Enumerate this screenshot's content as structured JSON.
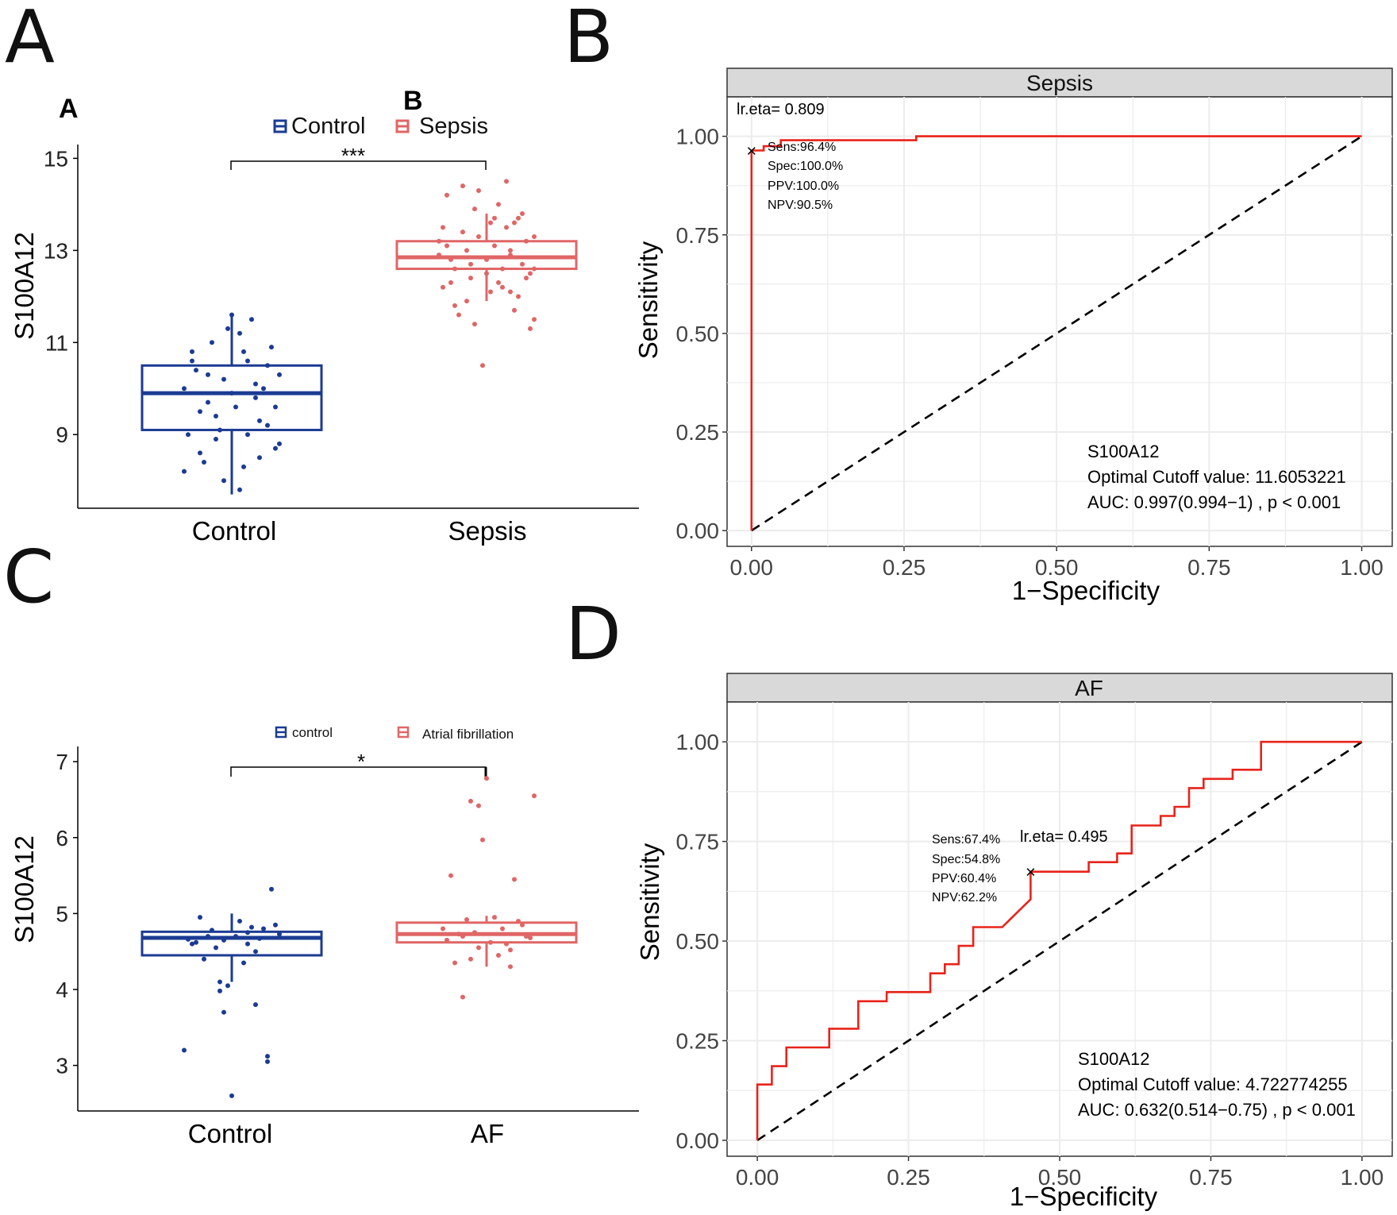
{
  "panels": {
    "A": {
      "letter": "A"
    },
    "B": {
      "letter": "B"
    },
    "C": {
      "letter": "C"
    },
    "D": {
      "letter": "D"
    }
  },
  "chart_data": [
    {
      "id": "A",
      "type": "box",
      "sublabels": [
        "A",
        "B"
      ],
      "legend": [
        "Control",
        "Sepsis"
      ],
      "ylabel": "S100A12",
      "categories": [
        "Control",
        "Sepsis"
      ],
      "yticks": [
        9,
        11,
        13,
        15
      ],
      "ylim": [
        7.4,
        15.3
      ],
      "significance": "***",
      "colors": [
        "#1b3b93",
        "#e06666"
      ],
      "boxes": [
        {
          "q1": 9.1,
          "median": 9.9,
          "q3": 10.5,
          "low": 7.7,
          "high": 11.6
        },
        {
          "q1": 12.6,
          "median": 12.85,
          "q3": 13.2,
          "low": 11.9,
          "high": 13.8
        }
      ],
      "points": [
        [
          [
            0,
            9.9
          ],
          [
            0.3,
            10.1
          ],
          [
            -0.4,
            9.5
          ],
          [
            0.6,
            10.3
          ],
          [
            -0.2,
            8.9
          ],
          [
            0.1,
            11.2
          ],
          [
            -0.5,
            10.8
          ],
          [
            0.45,
            9.2
          ],
          [
            -0.3,
            9.7
          ],
          [
            0.2,
            10.6
          ],
          [
            -0.6,
            8.2
          ],
          [
            0.55,
            8.7
          ],
          [
            -0.1,
            10.2
          ],
          [
            0.35,
            9.3
          ],
          [
            -0.45,
            10.4
          ],
          [
            0.15,
            8.3
          ],
          [
            -0.25,
            11.0
          ],
          [
            0.5,
            10.9
          ],
          [
            -0.55,
            9.0
          ],
          [
            0.05,
            9.6
          ],
          [
            0.25,
            11.5
          ],
          [
            -0.35,
            8.4
          ],
          [
            0.4,
            10.0
          ],
          [
            -0.15,
            9.1
          ],
          [
            0.6,
            8.8
          ],
          [
            -0.05,
            11.3
          ],
          [
            0.3,
            9.8
          ],
          [
            -0.5,
            10.6
          ],
          [
            0.1,
            7.8
          ],
          [
            -0.2,
            9.4
          ],
          [
            0.45,
            10.5
          ],
          [
            -0.4,
            8.6
          ],
          [
            0.2,
            9.0
          ],
          [
            -0.6,
            10.0
          ],
          [
            0.55,
            9.6
          ],
          [
            0.0,
            11.6
          ],
          [
            -0.3,
            10.3
          ],
          [
            0.35,
            8.5
          ],
          [
            -0.1,
            8.0
          ],
          [
            0.15,
            10.8
          ]
        ],
        [
          [
            0,
            12.8
          ],
          [
            0.3,
            13.0
          ],
          [
            -0.4,
            12.6
          ],
          [
            0.6,
            13.3
          ],
          [
            -0.2,
            12.4
          ],
          [
            0.1,
            13.7
          ],
          [
            -0.5,
            13.1
          ],
          [
            0.45,
            12.7
          ],
          [
            -0.3,
            13.4
          ],
          [
            0.2,
            12.2
          ],
          [
            -0.6,
            12.9
          ],
          [
            0.55,
            12.5
          ],
          [
            -0.1,
            14.3
          ],
          [
            0.35,
            13.6
          ],
          [
            -0.45,
            12.3
          ],
          [
            0.15,
            14.0
          ],
          [
            -0.25,
            11.9
          ],
          [
            0.5,
            13.2
          ],
          [
            -0.55,
            13.5
          ],
          [
            0.05,
            12.1
          ],
          [
            0.25,
            14.5
          ],
          [
            -0.35,
            11.6
          ],
          [
            0.4,
            12.0
          ],
          [
            -0.15,
            13.9
          ],
          [
            0.6,
            11.5
          ],
          [
            -0.05,
            10.5
          ],
          [
            0.3,
            12.9
          ],
          [
            -0.5,
            14.2
          ],
          [
            0.1,
            13.1
          ],
          [
            -0.2,
            12.7
          ],
          [
            0.45,
            13.8
          ],
          [
            -0.4,
            11.8
          ],
          [
            0.2,
            12.6
          ],
          [
            -0.6,
            13.2
          ],
          [
            0.55,
            11.3
          ],
          [
            0.0,
            12.5
          ],
          [
            -0.3,
            14.4
          ],
          [
            0.35,
            11.7
          ],
          [
            -0.1,
            13.3
          ],
          [
            0.15,
            12.3
          ],
          [
            0.25,
            13.5
          ],
          [
            -0.45,
            12.8
          ],
          [
            0.5,
            12.4
          ],
          [
            -0.25,
            13.0
          ],
          [
            0.4,
            13.7
          ],
          [
            -0.55,
            12.2
          ],
          [
            0.05,
            13.6
          ],
          [
            0.6,
            12.6
          ],
          [
            -0.15,
            11.4
          ],
          [
            0.3,
            12.1
          ]
        ]
      ]
    },
    {
      "id": "B",
      "type": "line",
      "strip": "Sepsis",
      "xlabel": "1−Specificity",
      "ylabel": "Sensitivity",
      "xticks": [
        "0.00",
        "0.25",
        "0.50",
        "0.75",
        "1.00"
      ],
      "yticks": [
        "0.00",
        "0.25",
        "0.50",
        "0.75",
        "1.00"
      ],
      "xlim": [
        -0.04,
        1.05
      ],
      "ylim": [
        -0.04,
        1.1
      ],
      "roc": [
        [
          0,
          0
        ],
        [
          0,
          0.964
        ],
        [
          0.02,
          0.964
        ],
        [
          0.02,
          0.975
        ],
        [
          0.048,
          0.975
        ],
        [
          0.048,
          0.99
        ],
        [
          0.27,
          0.99
        ],
        [
          0.27,
          1.0
        ],
        [
          1.0,
          1.0
        ]
      ],
      "cutpoint": [
        0,
        0.964
      ],
      "lr_label": "lr.eta= 0.809",
      "metrics": [
        "Sens:96.4%",
        "Spec:100.0%",
        "PPV:100.0%",
        "NPV:90.5%"
      ],
      "annotation": [
        "S100A12",
        "Optimal Cutoff value:  11.6053221",
        "AUC:  0.997(0.994−1) , p < 0.001"
      ],
      "colors": {
        "roc": "#e8231a",
        "diag": "#000000"
      }
    },
    {
      "id": "C",
      "type": "box",
      "legend": [
        "control",
        "Atrial fibrillation"
      ],
      "ylabel": "S100A12",
      "categories": [
        "Control",
        "AF"
      ],
      "yticks": [
        3,
        4,
        5,
        6,
        7
      ],
      "ylim": [
        2.4,
        7.2
      ],
      "significance": "*",
      "colors": [
        "#1b3b93",
        "#e06666"
      ],
      "boxes": [
        {
          "q1": 4.45,
          "median": 4.68,
          "q3": 4.76,
          "low": 4.1,
          "high": 5.0
        },
        {
          "q1": 4.62,
          "median": 4.73,
          "q3": 4.88,
          "low": 4.3,
          "high": 4.97
        }
      ],
      "points": [
        [
          [
            -0.3,
            4.7
          ],
          [
            0.2,
            4.75
          ],
          [
            -0.1,
            4.65
          ],
          [
            0.4,
            4.8
          ],
          [
            -0.5,
            4.6
          ],
          [
            0.1,
            4.9
          ],
          [
            -0.2,
            4.55
          ],
          [
            0.3,
            4.5
          ],
          [
            0.5,
            5.32
          ],
          [
            -0.4,
            4.95
          ],
          [
            0.45,
            3.05
          ],
          [
            0.45,
            3.12
          ],
          [
            -0.6,
            3.2
          ],
          [
            0.0,
            2.6
          ],
          [
            -0.1,
            3.7
          ],
          [
            0.3,
            3.8
          ],
          [
            -0.05,
            4.05
          ],
          [
            -0.15,
            4.1
          ],
          [
            -0.15,
            3.98
          ],
          [
            0.2,
            4.6
          ],
          [
            0.55,
            4.85
          ],
          [
            -0.45,
            4.62
          ],
          [
            0.05,
            4.7
          ],
          [
            0.25,
            4.82
          ],
          [
            -0.35,
            4.4
          ],
          [
            0.15,
            4.35
          ],
          [
            0.35,
            4.67
          ],
          [
            -0.25,
            4.78
          ],
          [
            0.6,
            4.73
          ],
          [
            -0.55,
            4.66
          ]
        ],
        [
          [
            -0.3,
            4.7
          ],
          [
            0.2,
            4.8
          ],
          [
            -0.1,
            4.55
          ],
          [
            0.4,
            4.9
          ],
          [
            -0.5,
            4.65
          ],
          [
            0.1,
            4.95
          ],
          [
            -0.2,
            4.4
          ],
          [
            0.3,
            4.3
          ],
          [
            0.0,
            6.78
          ],
          [
            -0.1,
            6.42
          ],
          [
            -0.2,
            6.48
          ],
          [
            0.6,
            6.55
          ],
          [
            -0.05,
            5.97
          ],
          [
            -0.45,
            5.5
          ],
          [
            0.35,
            5.45
          ],
          [
            -0.3,
            3.9
          ],
          [
            0.15,
            4.45
          ],
          [
            0.5,
            4.7
          ],
          [
            -0.55,
            4.8
          ],
          [
            0.25,
            4.6
          ],
          [
            0.45,
            4.85
          ],
          [
            -0.15,
            4.75
          ],
          [
            0.05,
            4.62
          ],
          [
            -0.4,
            4.35
          ],
          [
            0.55,
            4.68
          ],
          [
            -0.25,
            4.92
          ],
          [
            0.3,
            4.52
          ],
          [
            -0.35,
            4.73
          ]
        ]
      ]
    },
    {
      "id": "D",
      "type": "line",
      "strip": "AF",
      "xlabel": "1−Specificity",
      "ylabel": "Sensitivity",
      "xticks": [
        "0.00",
        "0.25",
        "0.50",
        "0.75",
        "1.00"
      ],
      "yticks": [
        "0.00",
        "0.25",
        "0.50",
        "0.75",
        "1.00"
      ],
      "xlim": [
        -0.05,
        1.05
      ],
      "ylim": [
        -0.04,
        1.1
      ],
      "roc": [
        [
          0,
          0
        ],
        [
          0,
          0.14
        ],
        [
          0.024,
          0.14
        ],
        [
          0.024,
          0.186
        ],
        [
          0.048,
          0.186
        ],
        [
          0.048,
          0.233
        ],
        [
          0.119,
          0.233
        ],
        [
          0.119,
          0.28
        ],
        [
          0.167,
          0.28
        ],
        [
          0.167,
          0.349
        ],
        [
          0.214,
          0.349
        ],
        [
          0.214,
          0.372
        ],
        [
          0.286,
          0.372
        ],
        [
          0.286,
          0.419
        ],
        [
          0.31,
          0.419
        ],
        [
          0.31,
          0.442
        ],
        [
          0.333,
          0.442
        ],
        [
          0.333,
          0.488
        ],
        [
          0.357,
          0.488
        ],
        [
          0.357,
          0.535
        ],
        [
          0.405,
          0.535
        ],
        [
          0.452,
          0.605
        ],
        [
          0.452,
          0.674
        ],
        [
          0.548,
          0.674
        ],
        [
          0.548,
          0.698
        ],
        [
          0.595,
          0.698
        ],
        [
          0.595,
          0.72
        ],
        [
          0.619,
          0.72
        ],
        [
          0.619,
          0.79
        ],
        [
          0.667,
          0.79
        ],
        [
          0.667,
          0.814
        ],
        [
          0.69,
          0.814
        ],
        [
          0.69,
          0.837
        ],
        [
          0.714,
          0.837
        ],
        [
          0.714,
          0.884
        ],
        [
          0.738,
          0.884
        ],
        [
          0.738,
          0.907
        ],
        [
          0.786,
          0.907
        ],
        [
          0.786,
          0.93
        ],
        [
          0.833,
          0.93
        ],
        [
          0.833,
          1.0
        ],
        [
          1.0,
          1.0
        ]
      ],
      "cutpoint": [
        0.452,
        0.674
      ],
      "lr_label": "lr.eta= 0.495",
      "metrics": [
        "Sens:67.4%",
        "Spec:54.8%",
        "PPV:60.4%",
        "NPV:62.2%"
      ],
      "annotation": [
        "S100A12",
        "Optimal Cutoff value:  4.722774255",
        "AUC:  0.632(0.514−0.75) , p < 0.001"
      ],
      "colors": {
        "roc": "#e8231a",
        "diag": "#000000"
      }
    }
  ]
}
